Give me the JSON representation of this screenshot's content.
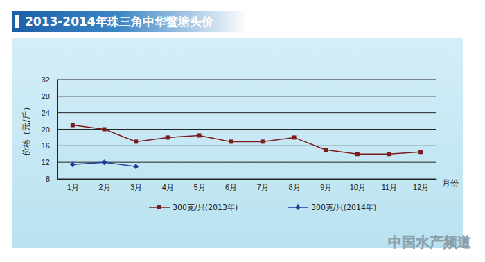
{
  "chart_data": {
    "type": "line",
    "title": "2013-2014年珠三角中华鳖塘头价",
    "y_label": "价格（元/斤）",
    "x_label": "月份",
    "categories": [
      "1月",
      "2月",
      "3月",
      "4月",
      "5月",
      "6月",
      "7月",
      "8月",
      "9月",
      "10月",
      "11月",
      "12月"
    ],
    "series": [
      {
        "name": "300克/只(2013年)",
        "color": "#7b1c1c",
        "marker": "square",
        "values": [
          21,
          20,
          17,
          18,
          18.5,
          17,
          17,
          18,
          15,
          14,
          14,
          14.5
        ]
      },
      {
        "name": "300克/只(2014年)",
        "color": "#1f3d99",
        "marker": "diamond",
        "values": [
          11.5,
          12,
          11,
          null,
          null,
          null,
          null,
          null,
          null,
          null,
          null,
          null
        ]
      }
    ],
    "ylim": [
      8,
      32
    ],
    "yticks": [
      8,
      12,
      16,
      20,
      24,
      28,
      32
    ],
    "grid": true,
    "legend": "bottom",
    "annotations": [
      "中国水产频道"
    ]
  }
}
